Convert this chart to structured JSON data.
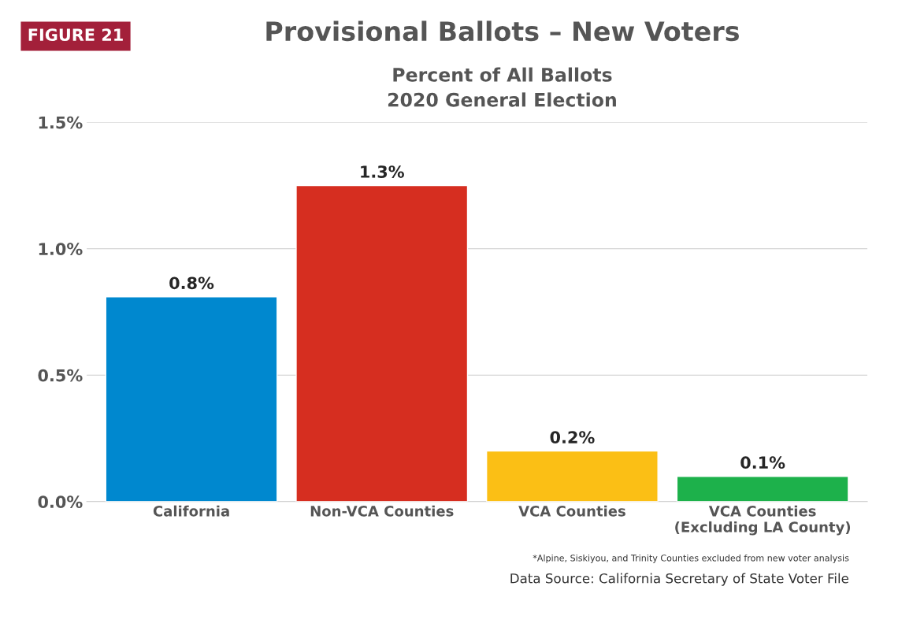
{
  "chart_data": {
    "type": "bar",
    "title": "Provisional Ballots – New Voters",
    "subtitle": "Percent of All Ballots\n2020 General Election",
    "categories": [
      "California",
      "Non-VCA Counties",
      "VCA Counties",
      "VCA Counties\n(Excluding LA County)"
    ],
    "values": [
      0.81,
      1.25,
      0.2,
      0.1
    ],
    "colors": [
      "#0088cf",
      "#d62e20",
      "#fbbf15",
      "#1db14b"
    ],
    "value_labels": [
      "0.8%",
      "1.3%",
      "0.2%",
      "0.1%"
    ],
    "ylim": [
      0,
      1.5
    ],
    "yticks": [
      {
        "value": 0,
        "label": "0.0%"
      },
      {
        "value": 0.5,
        "label": "0.5%"
      },
      {
        "value": 1.0,
        "label": "1.0%"
      },
      {
        "value": 1.5,
        "label": "1.5%"
      }
    ],
    "grid": "y",
    "legend": false,
    "annotations": [
      "FIGURE 21",
      "*Alpine, Siskiyou, and Trinity Counties excluded from new voter analysis",
      "Data Source: California Secretary of State Voter File"
    ]
  }
}
